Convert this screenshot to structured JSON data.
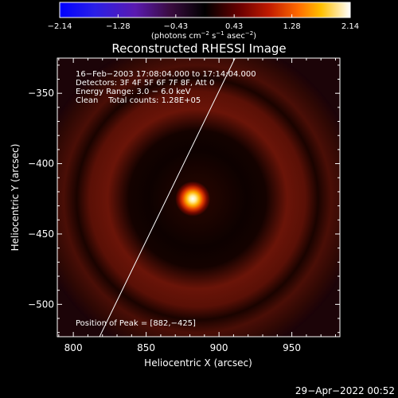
{
  "colorbar": {
    "ticks": [
      {
        "value": -2.14,
        "label": "−2.14"
      },
      {
        "value": -1.28,
        "label": "−1.28"
      },
      {
        "value": -0.43,
        "label": "−0.43"
      },
      {
        "value": 0.43,
        "label": "0.43"
      },
      {
        "value": 1.28,
        "label": "1.28"
      },
      {
        "value": 2.14,
        "label": "2.14"
      }
    ],
    "units_text": "(photons cm",
    "units_exp1": "−2",
    "units_mid": " s",
    "units_exp2": "−1",
    "units_tail": " asec",
    "units_exp3": "−2",
    "units_close": ")",
    "range": [
      -2.14,
      2.14
    ]
  },
  "plot": {
    "title": "Reconstructed RHESSI Image",
    "xlabel": "Heliocentric X (arcsec)",
    "ylabel": "Heliocentric Y (arcsec)",
    "xlim": [
      789,
      983
    ],
    "ylim": [
      -523,
      -325
    ],
    "xticks": [
      {
        "value": 800,
        "label": "800"
      },
      {
        "value": 850,
        "label": "850"
      },
      {
        "value": 900,
        "label": "900"
      },
      {
        "value": 950,
        "label": "950"
      }
    ],
    "yticks": [
      {
        "value": -350,
        "label": "−350"
      },
      {
        "value": -400,
        "label": "−400"
      },
      {
        "value": -450,
        "label": "−450"
      },
      {
        "value": -500,
        "label": "−500"
      }
    ],
    "info_lines": [
      "16−Feb−2003 17:08:04.000 to 17:14:04.000",
      "Detectors: 3F 4F 5F 6F 7F 8F, Att 0",
      "Energy Range: 3.0 − 6.0 keV",
      "Clean    Total counts: 1.28E+05"
    ],
    "peak_text": "Position of Peak = [882,−425]",
    "peak": [
      882,
      -425
    ],
    "limb_x_at_bottom": 818,
    "limb_x_at_top": 911
  },
  "footer": {
    "timestamp": "29−Apr−2022 00:52"
  }
}
